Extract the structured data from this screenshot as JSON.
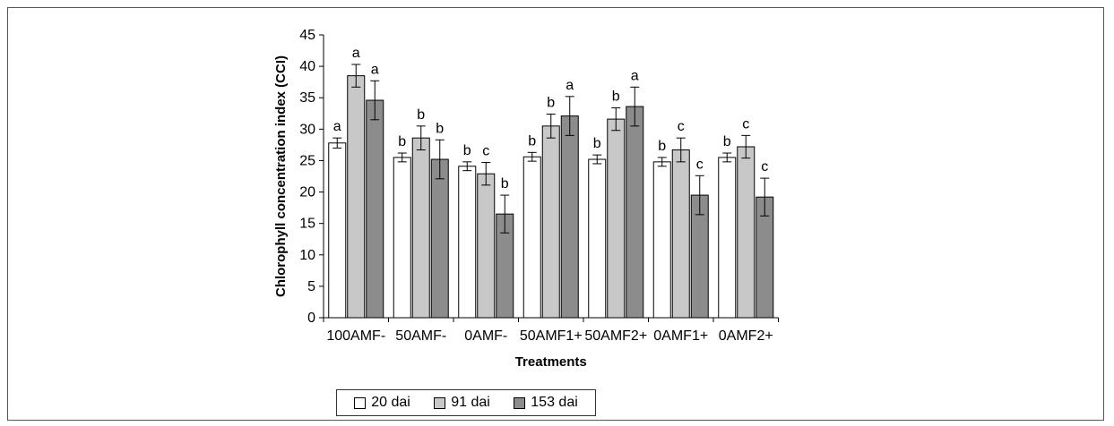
{
  "chart_data": {
    "type": "bar",
    "title": "",
    "xlabel": "Treatments",
    "ylabel": "Chlorophyll concentration index (CCI)",
    "ylim": [
      0,
      45
    ],
    "yticks": [
      0,
      5,
      10,
      15,
      20,
      25,
      30,
      35,
      40,
      45
    ],
    "grid": false,
    "legend_position": "bottom",
    "categories": [
      "100AMF-",
      "50AMF-",
      "0AMF-",
      "50AMF1+",
      "50AMF2+",
      "0AMF1+",
      "0AMF2+"
    ],
    "series": [
      {
        "name": "20 dai",
        "color": "#ffffff",
        "values": [
          27.8,
          25.5,
          24.1,
          25.6,
          25.2,
          24.8,
          25.5
        ],
        "errors": [
          0.8,
          0.7,
          0.7,
          0.7,
          0.7,
          0.7,
          0.7
        ],
        "letters": [
          "a",
          "b",
          "b",
          "b",
          "b",
          "b",
          "b"
        ]
      },
      {
        "name": "91 dai",
        "color": "#c8c8c8",
        "values": [
          38.5,
          28.6,
          22.9,
          30.5,
          31.6,
          26.7,
          27.2
        ],
        "errors": [
          1.8,
          1.9,
          1.8,
          1.9,
          1.8,
          1.9,
          1.8
        ],
        "letters": [
          "a",
          "b",
          "c",
          "b",
          "b",
          "c",
          "c"
        ]
      },
      {
        "name": "153 dai",
        "color": "#8c8c8c",
        "values": [
          34.6,
          25.2,
          16.5,
          32.1,
          33.6,
          19.5,
          19.2
        ],
        "errors": [
          3.1,
          3.1,
          3.0,
          3.1,
          3.1,
          3.1,
          3.0
        ],
        "letters": [
          "a",
          "b",
          "b",
          "a",
          "a",
          "c",
          "c"
        ]
      }
    ]
  }
}
